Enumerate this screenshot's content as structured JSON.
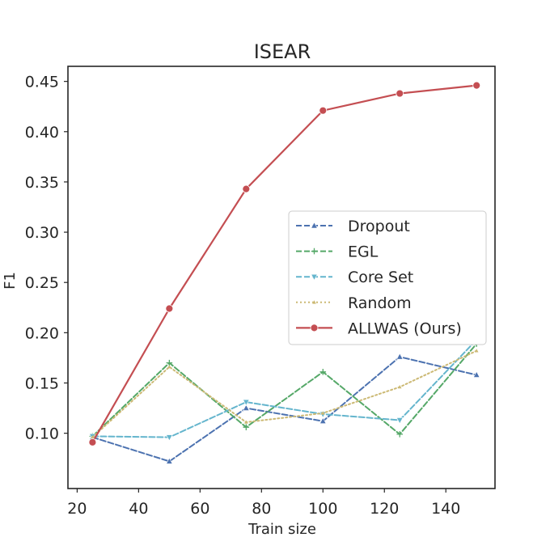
{
  "chart_data": {
    "type": "line",
    "title": "ISEAR",
    "xlabel": "Train size",
    "ylabel": "F1",
    "xlim": [
      17,
      156
    ],
    "ylim": [
      0.045,
      0.465
    ],
    "xticks": [
      20,
      40,
      60,
      80,
      100,
      120,
      140
    ],
    "xtick_labels": [
      "20",
      "40",
      "60",
      "80",
      "100",
      "120",
      "140"
    ],
    "yticks": [
      0.1,
      0.15,
      0.2,
      0.25,
      0.3,
      0.35,
      0.4,
      0.45
    ],
    "ytick_labels": [
      "0.10",
      "0.15",
      "0.20",
      "0.25",
      "0.30",
      "0.35",
      "0.40",
      "0.45"
    ],
    "grid": false,
    "legend_position": "center-right",
    "x": [
      25,
      50,
      75,
      100,
      125,
      150
    ],
    "series": [
      {
        "name": "Dropout",
        "values": [
          0.096,
          0.072,
          0.125,
          0.112,
          0.176,
          0.158
        ],
        "color": "#4c72b0",
        "linestyle": "dashed",
        "marker": "triangle-up"
      },
      {
        "name": "EGL",
        "values": [
          0.097,
          0.17,
          0.106,
          0.161,
          0.099,
          0.189
        ],
        "color": "#55a868",
        "linestyle": "dashed",
        "marker": "plus"
      },
      {
        "name": "Core Set",
        "values": [
          0.097,
          0.096,
          0.131,
          0.119,
          0.113,
          0.193
        ],
        "color": "#64b5cd",
        "linestyle": "dashed",
        "marker": "triangle-down"
      },
      {
        "name": "Random",
        "values": [
          0.096,
          0.166,
          0.111,
          0.12,
          0.146,
          0.182
        ],
        "color": "#ccb974",
        "linestyle": "dotted",
        "marker": "small-triangle"
      },
      {
        "name": "ALLWAS (Ours)",
        "values": [
          0.091,
          0.224,
          0.343,
          0.421,
          0.438,
          0.446
        ],
        "color": "#c44e52",
        "linestyle": "solid",
        "marker": "circle"
      }
    ]
  }
}
